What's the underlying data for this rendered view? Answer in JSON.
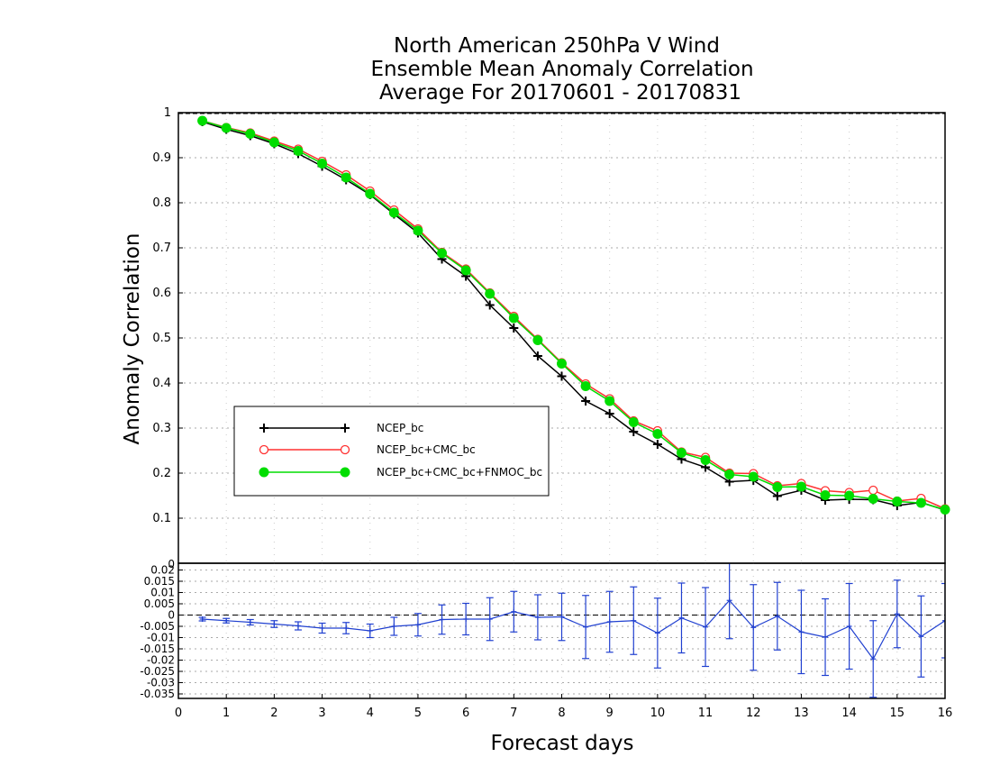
{
  "chart_data": [
    {
      "type": "line",
      "title_lines": [
        "North American 250hPa V Wind",
        "Ensemble Mean Anomaly Correlation",
        "Average For 20170601 - 20170831"
      ],
      "ylabel": "Anomaly Correlation",
      "ylim": [
        0,
        1
      ],
      "yticks": [
        "0.1",
        "0.2",
        "0.3",
        "0.4",
        "0.5",
        "0.6",
        "0.7",
        "0.8",
        "0.9",
        "1"
      ],
      "grid": true,
      "legend_position": "left-middle",
      "x": [
        0.5,
        1,
        1.5,
        2,
        2.5,
        3,
        3.5,
        4,
        4.5,
        5,
        5.5,
        6,
        6.5,
        7,
        7.5,
        8,
        8.5,
        9,
        9.5,
        10,
        10.5,
        11,
        11.5,
        12,
        12.5,
        13,
        13.5,
        14,
        14.5,
        15,
        15.5,
        16
      ],
      "series": [
        {
          "name": "NCEP_bc",
          "color": "#000000",
          "marker": "plus",
          "values": [
            0.98,
            0.963,
            0.949,
            0.931,
            0.909,
            0.881,
            0.851,
            0.818,
            0.775,
            0.733,
            0.675,
            0.637,
            0.573,
            0.522,
            0.46,
            0.415,
            0.36,
            0.332,
            0.292,
            0.264,
            0.231,
            0.213,
            0.181,
            0.184,
            0.149,
            0.162,
            0.14,
            0.142,
            0.141,
            0.128,
            0.135,
            0.118
          ]
        },
        {
          "name": "NCEP_bc+CMC_bc",
          "color": "#ff3030",
          "marker": "open-circle",
          "values": [
            0.982,
            0.967,
            0.955,
            0.937,
            0.919,
            0.892,
            0.862,
            0.826,
            0.784,
            0.742,
            0.69,
            0.653,
            0.6,
            0.548,
            0.497,
            0.445,
            0.398,
            0.365,
            0.316,
            0.294,
            0.247,
            0.235,
            0.2,
            0.199,
            0.172,
            0.177,
            0.161,
            0.157,
            0.162,
            0.138,
            0.144,
            0.121
          ]
        },
        {
          "name": "NCEP_bc+CMC_bc+FNMOC_bc",
          "color": "#00dd00",
          "marker": "filled-circle",
          "values": [
            0.982,
            0.966,
            0.953,
            0.934,
            0.915,
            0.887,
            0.856,
            0.82,
            0.778,
            0.738,
            0.688,
            0.65,
            0.598,
            0.544,
            0.495,
            0.443,
            0.393,
            0.36,
            0.313,
            0.287,
            0.245,
            0.229,
            0.197,
            0.192,
            0.169,
            0.17,
            0.151,
            0.15,
            0.143,
            0.137,
            0.134,
            0.119
          ]
        }
      ]
    },
    {
      "type": "line",
      "ylim": [
        -0.037,
        0.023
      ],
      "yticks": [
        "0.02",
        "0.015",
        "0.01",
        "0.005",
        "0",
        "-0.005",
        "-0.01",
        "-0.015",
        "-0.02",
        "-0.025",
        "-0.03",
        "-0.035"
      ],
      "ytick_top": "0",
      "xlabel": "Forecast days",
      "xlim": [
        0,
        16
      ],
      "xticks": [
        "0",
        "1",
        "2",
        "3",
        "4",
        "5",
        "6",
        "7",
        "8",
        "9",
        "10",
        "11",
        "12",
        "13",
        "14",
        "15",
        "16"
      ],
      "grid": true,
      "x": [
        0.5,
        1,
        1.5,
        2,
        2.5,
        3,
        3.5,
        4,
        4.5,
        5,
        5.5,
        6,
        6.5,
        7,
        7.5,
        8,
        8.5,
        9,
        9.5,
        10,
        10.5,
        11,
        11.5,
        12,
        12.5,
        13,
        13.5,
        14,
        14.5,
        15,
        15.5,
        16
      ],
      "series": [
        {
          "name": "difference",
          "color": "#2040d0",
          "values": [
            -0.0018,
            -0.0025,
            -0.0032,
            -0.004,
            -0.0048,
            -0.0058,
            -0.0058,
            -0.007,
            -0.005,
            -0.0043,
            -0.002,
            -0.0018,
            -0.0018,
            0.0015,
            -0.001,
            -0.0008,
            -0.0053,
            -0.003,
            -0.0025,
            -0.008,
            -0.0013,
            -0.0053,
            0.0065,
            -0.0055,
            -0.0005,
            -0.0075,
            -0.0098,
            -0.005,
            -0.0195,
            0.0005,
            -0.0095,
            -0.0025
          ],
          "error": [
            0.0008,
            0.001,
            0.0012,
            0.0015,
            0.0018,
            0.0022,
            0.0025,
            0.003,
            0.004,
            0.005,
            0.0065,
            0.007,
            0.0095,
            0.009,
            0.01,
            0.0105,
            0.014,
            0.0135,
            0.015,
            0.0155,
            0.0155,
            0.0175,
            0.017,
            0.019,
            0.015,
            0.0185,
            0.017,
            0.019,
            0.017,
            0.015,
            0.018,
            0.0165
          ]
        }
      ]
    }
  ]
}
